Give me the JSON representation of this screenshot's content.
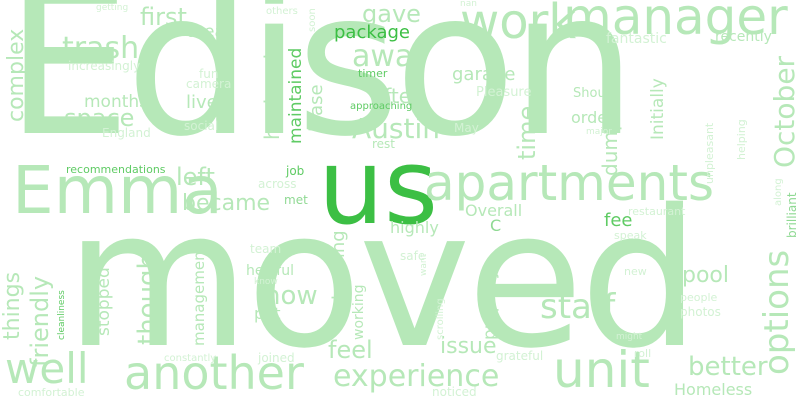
{
  "word_cloud": {
    "background_color": "#ffffff",
    "colors": {
      "light": "#b6e8b8",
      "medium": "#8fd993",
      "dark": "#5fcb64",
      "accent": "#3cbf44",
      "pale": "#d3f2d4"
    },
    "words": {
      "edison": "Edison",
      "moved": "moved",
      "us": "us",
      "emma": "Emma",
      "apartments": "apartments",
      "work": "work",
      "manager": "manager",
      "another": "another",
      "unit": "unit",
      "experience": "experience",
      "well": "well",
      "staff": "staff",
      "trash": "trash",
      "options": "options",
      "october": "October",
      "austin": "Austin",
      "complex": "complex",
      "first": "first",
      "gave": "gave",
      "away": "away",
      "package": "package",
      "husband": "husband",
      "maintained": "maintained",
      "lease": "lease",
      "time": "time",
      "garage": "garage",
      "months": "months",
      "space": "space",
      "live": "live",
      "left": "left",
      "became": "became",
      "dumpster": "dumpster",
      "initially": "Initially",
      "area": "area",
      "fantastic": "fantastic",
      "recently": "recently",
      "feel": "feel",
      "issue": "issue",
      "better": "better",
      "homeless": "Homeless",
      "now": "now",
      "though": "though",
      "friendly": "friendly",
      "things": "things",
      "pool": "pool",
      "often": "often",
      "fee": "fee",
      "overall": "Overall",
      "highly": "highly",
      "c": "C",
      "properly": "properly",
      "training": "training",
      "working": "working",
      "stopped": "stopped",
      "management": "management",
      "put": "put",
      "helpful": "helpful",
      "recommendations": "recommendations",
      "job": "job",
      "met": "met",
      "across": "across",
      "order": "order",
      "shout": "Shout",
      "pleasure": "Pleasure",
      "may": "May",
      "rest": "rest",
      "approaching": "approaching",
      "timer": "timer",
      "social": "social",
      "england": "England",
      "camera": "camera",
      "fun": "fun",
      "increasingly": "increasingly",
      "getting": "getting",
      "others": "others",
      "soon": "soon",
      "nan": "nan",
      "unpleasant": "unpleasant",
      "helping": "helping",
      "major": "major",
      "restaurant": "restaurant",
      "speak": "speak",
      "along": "along",
      "brilliant": "brilliant",
      "new": "new",
      "people": "people",
      "photos": "photos",
      "might": "might",
      "roll": "roll",
      "grateful": "grateful",
      "scrolling": "scrolling",
      "want": "want",
      "safe": "safe",
      "know": "know",
      "team": "team",
      "joined": "joined",
      "noticed": "noticed",
      "constantly": "constantly",
      "comfortable": "comfortable",
      "cleanliness": "cleanliness"
    }
  }
}
